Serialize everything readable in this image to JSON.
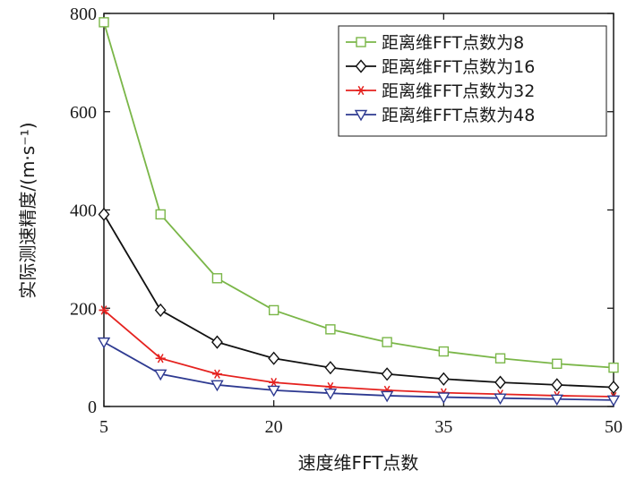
{
  "chart_data": {
    "type": "line",
    "xlabel": "速度维FFT点数",
    "ylabel": "实际测速精度/(m·s⁻¹)",
    "xlim": [
      5,
      50
    ],
    "ylim": [
      0,
      800
    ],
    "xticks": [
      "5",
      "20",
      "35",
      "50"
    ],
    "yticks": [
      "0",
      "200",
      "400",
      "600",
      "800"
    ],
    "x": [
      5,
      10,
      15,
      20,
      25,
      30,
      35,
      40,
      45,
      50
    ],
    "legend_position": "top-right",
    "grid": false,
    "series": [
      {
        "name": "距离维FFT点数为8",
        "color": "#7ab648",
        "marker": "square",
        "values": [
          782,
          391,
          261,
          196,
          157,
          131,
          112,
          98,
          87,
          79
        ]
      },
      {
        "name": "距离维FFT点数为16",
        "color": "#111111",
        "marker": "diamond",
        "values": [
          391,
          196,
          131,
          98,
          79,
          66,
          56,
          49,
          44,
          39
        ]
      },
      {
        "name": "距离维FFT点数为32",
        "color": "#e5221f",
        "marker": "asterisk",
        "values": [
          196,
          98,
          66,
          49,
          40,
          33,
          28,
          25,
          22,
          20
        ]
      },
      {
        "name": "距离维FFT点数为48",
        "color": "#2e3a91",
        "marker": "triangle-down",
        "values": [
          131,
          66,
          44,
          33,
          27,
          22,
          19,
          17,
          15,
          13
        ]
      }
    ]
  }
}
